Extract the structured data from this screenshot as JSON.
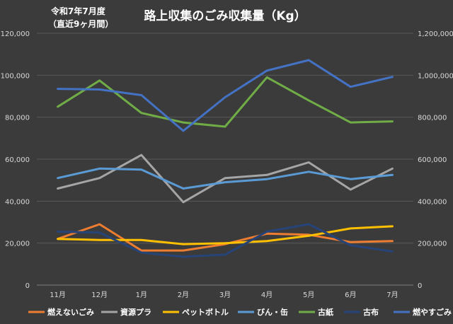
{
  "chart_data": {
    "type": "line",
    "title": "路上収集のごみ収集量（Kg）",
    "subtitle_lines": [
      "令和7年7月度",
      "（直近9ヶ月間）"
    ],
    "categories": [
      "11月",
      "12月",
      "1月",
      "2月",
      "3月",
      "4月",
      "5月",
      "6月",
      "7月"
    ],
    "ylim_left": [
      0,
      120000
    ],
    "ylim_right": [
      0,
      1200000
    ],
    "yticks_left": [
      "0",
      "20,000",
      "40,000",
      "60,000",
      "80,000",
      "100,000",
      "120,000"
    ],
    "yticks_right": [
      "0",
      "200,000",
      "400,000",
      "600,000",
      "800,000",
      "1,000,000",
      "1,200,000"
    ],
    "grid": true,
    "legend_position": "bottom",
    "series": [
      {
        "name": "燃えないごみ",
        "axis": "left",
        "color": "#ed7d31",
        "values": [
          22000,
          29000,
          16500,
          16500,
          19500,
          24500,
          24000,
          20500,
          21000
        ]
      },
      {
        "name": "資源プラ",
        "axis": "left",
        "color": "#a5a5a5",
        "values": [
          46000,
          51000,
          62000,
          39500,
          51000,
          52500,
          58500,
          45500,
          55500
        ]
      },
      {
        "name": "ペットボトル",
        "axis": "left",
        "color": "#ffc000",
        "values": [
          22000,
          21500,
          21500,
          19500,
          20000,
          21000,
          23500,
          27000,
          28000
        ]
      },
      {
        "name": "びん・缶",
        "axis": "left",
        "color": "#5b9bd5",
        "values": [
          51000,
          55500,
          55000,
          46000,
          49000,
          50500,
          54000,
          50500,
          52500
        ]
      },
      {
        "name": "古紙",
        "axis": "left",
        "color": "#70ad47",
        "values": [
          85000,
          97500,
          82000,
          77500,
          75500,
          99000,
          88000,
          77500,
          78000
        ]
      },
      {
        "name": "古布",
        "axis": "left",
        "color": "#264478",
        "values": [
          25500,
          25000,
          15500,
          13500,
          14500,
          25500,
          29000,
          19000,
          16000
        ]
      },
      {
        "name": "燃やすごみ",
        "axis": "right",
        "color": "#4472c4",
        "values": [
          935000,
          932000,
          905000,
          735000,
          895000,
          1022000,
          1072000,
          945000,
          992000
        ]
      }
    ]
  }
}
